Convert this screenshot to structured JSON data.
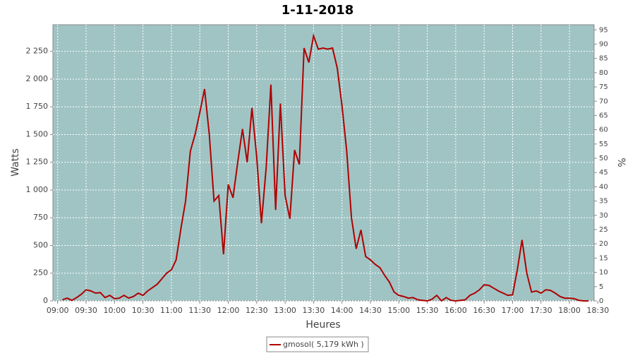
{
  "chart_data": {
    "type": "line",
    "title": "1-11-2018",
    "xlabel": "Heures",
    "ylabel": "Watts",
    "y2label": "%",
    "x": [
      "09:05",
      "09:10",
      "09:15",
      "09:20",
      "09:25",
      "09:30",
      "09:35",
      "09:40",
      "09:45",
      "09:50",
      "09:55",
      "10:00",
      "10:05",
      "10:10",
      "10:15",
      "10:20",
      "10:25",
      "10:30",
      "10:35",
      "10:40",
      "10:45",
      "10:50",
      "10:55",
      "11:00",
      "11:05",
      "11:10",
      "11:15",
      "11:20",
      "11:25",
      "11:30",
      "11:35",
      "11:40",
      "11:45",
      "11:50",
      "11:55",
      "12:00",
      "12:05",
      "12:10",
      "12:15",
      "12:20",
      "12:25",
      "12:30",
      "12:35",
      "12:40",
      "12:45",
      "12:50",
      "12:55",
      "13:00",
      "13:05",
      "13:10",
      "13:15",
      "13:20",
      "13:25",
      "13:30",
      "13:35",
      "13:40",
      "13:45",
      "13:50",
      "13:55",
      "14:00",
      "14:05",
      "14:10",
      "14:15",
      "14:20",
      "14:25",
      "14:30",
      "14:35",
      "14:40",
      "14:45",
      "14:50",
      "14:55",
      "15:00",
      "15:05",
      "15:10",
      "15:15",
      "15:20",
      "15:25",
      "15:30",
      "15:35",
      "15:40",
      "15:45",
      "15:50",
      "15:55",
      "16:00",
      "16:05",
      "16:10",
      "16:15",
      "16:20",
      "16:25",
      "16:30",
      "16:35",
      "16:40",
      "16:45",
      "16:50",
      "16:55",
      "17:00",
      "17:05",
      "17:10",
      "17:15",
      "17:20",
      "17:25",
      "17:30",
      "17:35",
      "17:40",
      "17:45",
      "17:50",
      "17:55",
      "18:00",
      "18:05",
      "18:10",
      "18:15",
      "18:20"
    ],
    "series": [
      {
        "name": "gmosol( 5,179 kWh )",
        "color": "#b00000",
        "values": [
          10,
          25,
          5,
          30,
          60,
          100,
          90,
          70,
          75,
          30,
          50,
          20,
          25,
          50,
          25,
          40,
          70,
          50,
          90,
          120,
          150,
          200,
          250,
          280,
          370,
          650,
          900,
          1350,
          1500,
          1700,
          1910,
          1500,
          900,
          950,
          420,
          1050,
          930,
          1250,
          1550,
          1250,
          1740,
          1300,
          700,
          1200,
          1950,
          820,
          1780,
          950,
          740,
          1360,
          1230,
          2280,
          2150,
          2390,
          2270,
          2280,
          2270,
          2280,
          2100,
          1760,
          1350,
          750,
          470,
          640,
          400,
          370,
          330,
          300,
          230,
          170,
          80,
          50,
          40,
          25,
          30,
          10,
          5,
          0,
          15,
          50,
          0,
          30,
          5,
          0,
          5,
          10,
          50,
          70,
          100,
          145,
          140,
          115,
          90,
          70,
          50,
          55,
          280,
          550,
          250,
          80,
          90,
          70,
          100,
          95,
          70,
          40,
          25,
          25,
          20,
          5,
          0,
          0
        ]
      }
    ],
    "xlim": [
      "08:55",
      "18:26"
    ],
    "xticks": [
      "09:00",
      "09:30",
      "10:00",
      "10:30",
      "11:00",
      "11:30",
      "12:00",
      "12:30",
      "13:00",
      "13:30",
      "14:00",
      "14:30",
      "15:00",
      "15:30",
      "16:00",
      "16:30",
      "17:00",
      "17:30",
      "18:00",
      "18:30"
    ],
    "ylim": [
      0,
      2490
    ],
    "yticks": [
      0,
      250,
      500,
      750,
      {
        "value": 1000,
        "label": "1 000"
      },
      {
        "value": 1250,
        "label": "1 250"
      },
      {
        "value": 1500,
        "label": "1 500"
      },
      {
        "value": 1750,
        "label": "1 750"
      },
      {
        "value": 2000,
        "label": "2 000"
      },
      {
        "value": 2250,
        "label": "2 250"
      }
    ],
    "y2lim": [
      0,
      96.8
    ],
    "y2ticks": [
      0,
      5,
      10,
      15,
      20,
      25,
      30,
      35,
      40,
      45,
      50,
      55,
      60,
      65,
      70,
      75,
      80,
      85,
      90,
      95
    ],
    "grid": true,
    "plot_background": "#a0c4c4"
  }
}
